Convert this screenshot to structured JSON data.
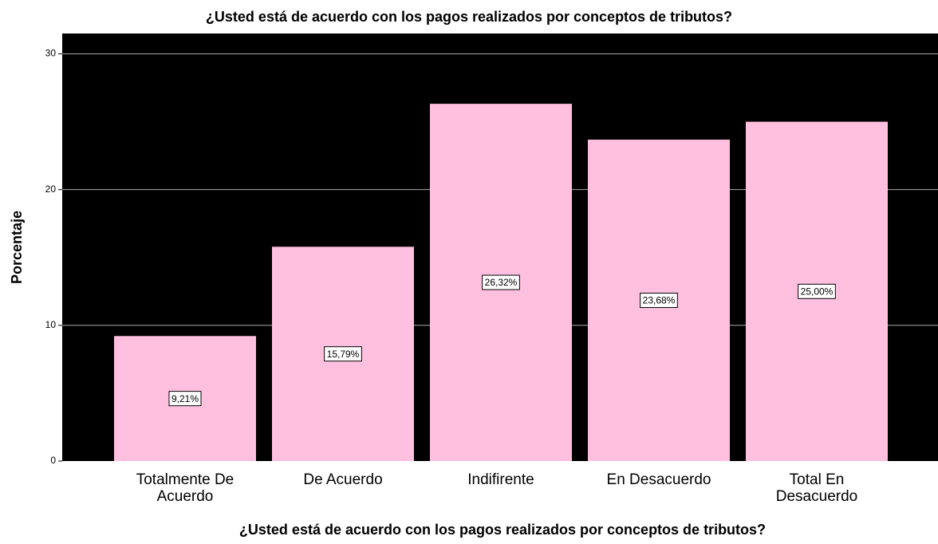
{
  "chart_data": {
    "type": "bar",
    "title": "¿Usted está de acuerdo con los pagos realizados por conceptos de tributos?",
    "x_label": "¿Usted está de acuerdo con los pagos realizados por conceptos de tributos?",
    "y_label": "Porcentaje",
    "categories": [
      "Totalmente De Acuerdo",
      "De Acuerdo",
      "Indifirente",
      "En Desacuerdo",
      "Total En Desacuerdo"
    ],
    "values": [
      9.21,
      15.79,
      26.32,
      23.68,
      25.0
    ],
    "value_labels": [
      "9,21%",
      "15,79%",
      "26,32%",
      "23,68%",
      "25,00%"
    ],
    "color": "#ffc0e0",
    "background": "#000000",
    "ylim": [
      0,
      31.5
    ],
    "yticks": [
      0,
      10,
      20,
      30
    ],
    "grid": true
  }
}
